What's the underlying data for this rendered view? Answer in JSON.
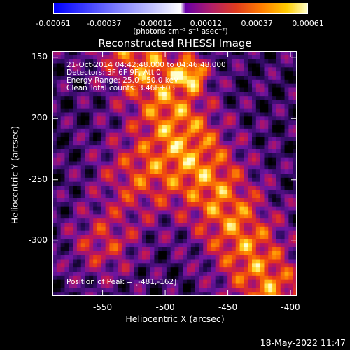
{
  "colorbar": {
    "ticks": [
      "-0.00061",
      "-0.00037",
      "-0.00012",
      "0.00012",
      "0.00037",
      "0.00061"
    ],
    "units": "(photons cm⁻² s⁻¹ asec⁻²)"
  },
  "chart_data": {
    "type": "heatmap",
    "title": "Reconstructed RHESSI Image",
    "xlabel": "Heliocentric X (arcsec)",
    "ylabel": "Heliocentric Y (arcsec)",
    "xlim": [
      -590,
      -395
    ],
    "ylim": [
      -345,
      -145
    ],
    "xticks": [
      "-550",
      "-500",
      "-450",
      "-400"
    ],
    "xtick_values": [
      -550,
      -500,
      -450,
      -400
    ],
    "yticks": [
      "-150",
      "-200",
      "-250",
      "-300"
    ],
    "ytick_values": [
      -150,
      -200,
      -250,
      -300
    ],
    "colorscale": "blue-white (negative) to purple-red-yellow (positive)",
    "color_range": [
      -0.00061,
      0.00061
    ],
    "peak": [
      -481,
      -162
    ],
    "annotations": [
      "21-Oct-2014 04:42:48.000 to 04:46:48.000",
      "Detectors: 3F 6F 9F, Att 0",
      "Energy Range: 25.0 - 50.0 keV",
      "Clean     Total counts: 3.46E+03"
    ],
    "peak_label": "Position of Peak = [-481,-162]"
  },
  "timestamp": "18-May-2022 11:47"
}
